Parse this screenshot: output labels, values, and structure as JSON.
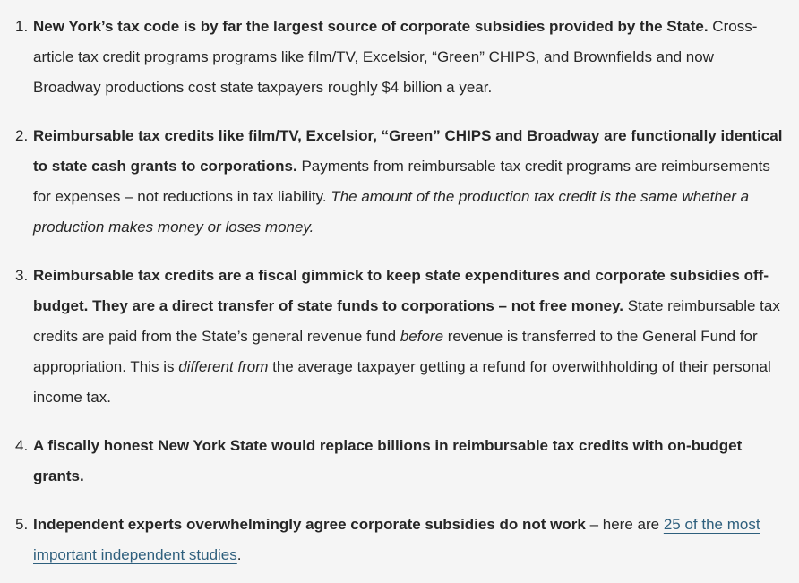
{
  "colors": {
    "background": "#f5f5f5",
    "text": "#262626",
    "link": "#2e5f7d"
  },
  "list": {
    "items": [
      {
        "number": "1.",
        "segments": [
          {
            "style": "bold",
            "text": "New York’s tax code is by far the largest source of corporate subsidies provided by the State."
          },
          {
            "style": "regular",
            "text": " Cross-article tax credit programs programs like film/TV, Excelsior, “Green” CHIPS, and Brownfields and now Broadway productions cost state taxpayers roughly $4 billion a year."
          }
        ]
      },
      {
        "number": "2.",
        "segments": [
          {
            "style": "bold",
            "text": "Reimbursable tax credits like film/TV, Excelsior, “Green” CHIPS and Broadway are functionally identical to state cash grants to corporations."
          },
          {
            "style": "regular",
            "text": " Payments from reimbursable tax credit programs are reimbursements for expenses – not reductions in tax liability. "
          },
          {
            "style": "italic",
            "text": "The amount of the production tax credit is the same whether a production makes money or loses money."
          }
        ]
      },
      {
        "number": "3.",
        "segments": [
          {
            "style": "bold",
            "text": "Reimbursable tax credits are a fiscal gimmick to keep state expenditures and corporate subsidies off-budget. They are a direct transfer of state funds to corporations – not free money."
          },
          {
            "style": "regular",
            "text": " State reimbursable tax credits are paid from the State’s general revenue fund "
          },
          {
            "style": "italic",
            "text": "before"
          },
          {
            "style": "regular",
            "text": " revenue is transferred to the General Fund for appropriation. This is "
          },
          {
            "style": "italic",
            "text": "different from"
          },
          {
            "style": "regular",
            "text": " the average taxpayer getting a refund for overwithholding of their personal income tax."
          }
        ]
      },
      {
        "number": "4.",
        "segments": [
          {
            "style": "bold",
            "text": "A fiscally honest New York State would replace billions in reimbursable tax credits with on-budget grants."
          }
        ]
      },
      {
        "number": "5.",
        "segments": [
          {
            "style": "bold",
            "text": "Independent experts overwhelmingly agree corporate subsidies do not work"
          },
          {
            "style": "regular",
            "text": " – here are "
          },
          {
            "style": "link",
            "text": "25 of the most important independent studies"
          },
          {
            "style": "regular",
            "text": "."
          }
        ]
      }
    ]
  }
}
